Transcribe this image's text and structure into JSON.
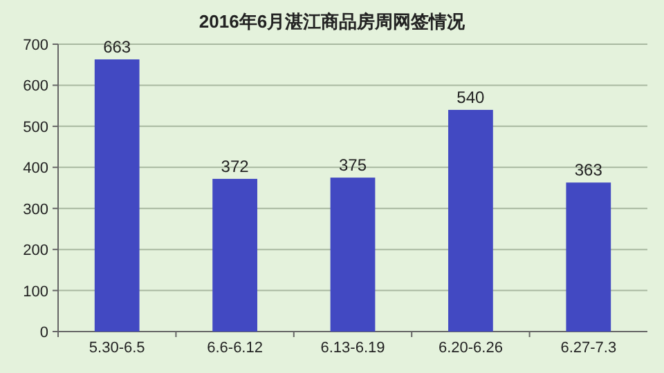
{
  "chart_data": {
    "type": "bar",
    "title": "2016年6月湛江商品房周网签情况",
    "categories": [
      "5.30-6.5",
      "6.6-6.12",
      "6.13-6.19",
      "6.20-6.26",
      "6.27-7.3"
    ],
    "values": [
      663,
      372,
      375,
      540,
      363
    ],
    "color": "#4249c2",
    "ylim": [
      0,
      700
    ],
    "yticks": [
      0,
      100,
      200,
      300,
      400,
      500,
      600,
      700
    ],
    "grid": "y",
    "data_labels": true
  }
}
